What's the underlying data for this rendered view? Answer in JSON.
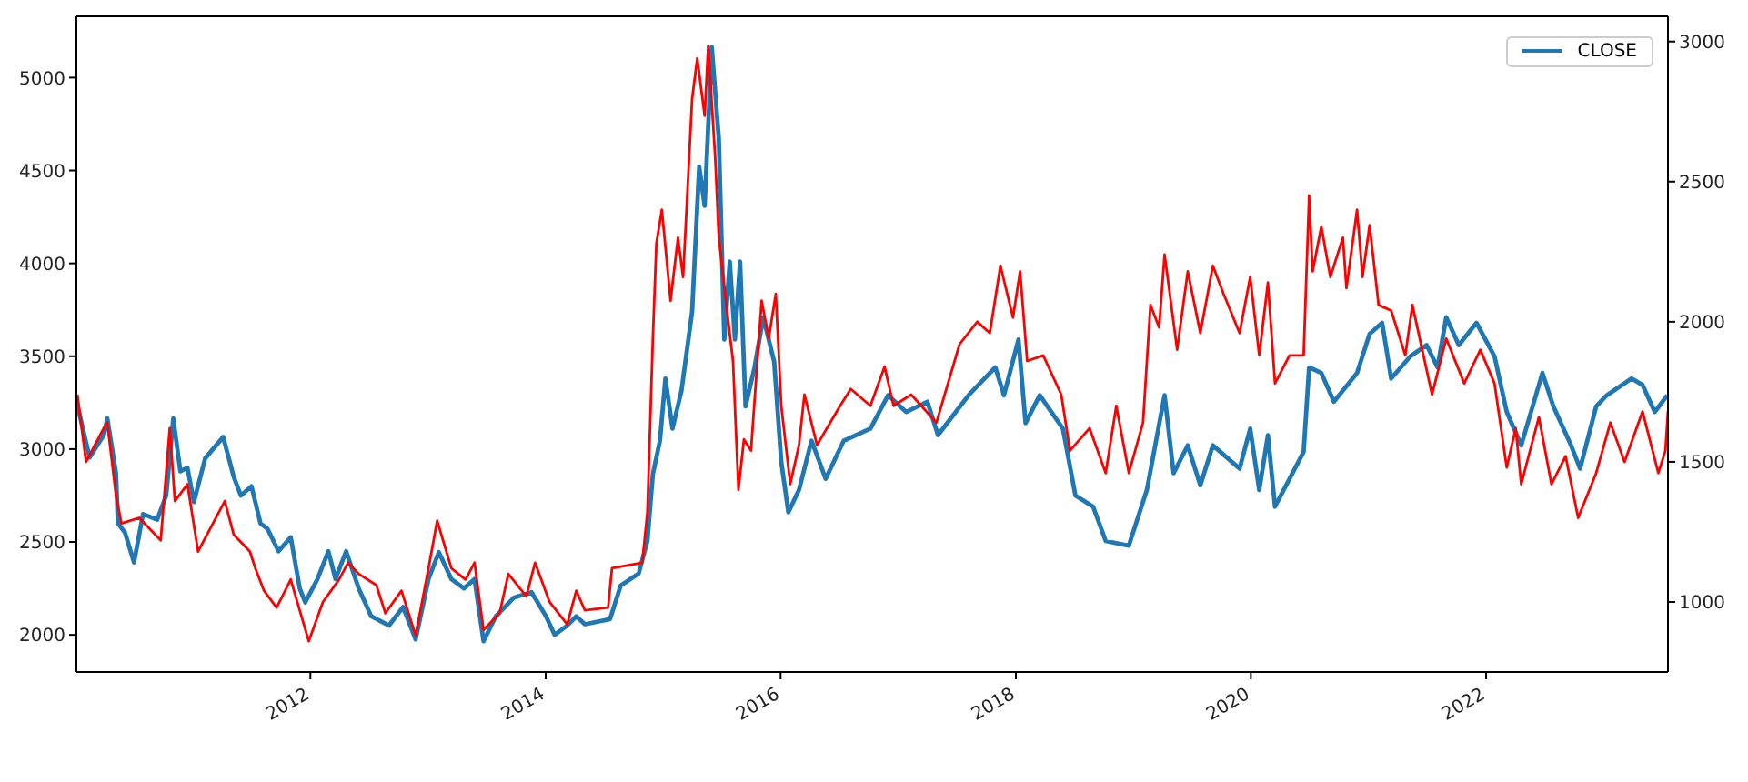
{
  "chart_data": {
    "type": "line",
    "legend": "top right",
    "xlim": [
      "2010-01-04",
      "2023-07-20"
    ],
    "xticks": [
      {
        "value": "2012-01-01",
        "label": "2012"
      },
      {
        "value": "2014-01-01",
        "label": "2014"
      },
      {
        "value": "2016-01-01",
        "label": "2016"
      },
      {
        "value": "2018-01-01",
        "label": "2018"
      },
      {
        "value": "2020-01-01",
        "label": "2020"
      },
      {
        "value": "2022-01-01",
        "label": "2022"
      }
    ],
    "ylim": [
      1800,
      5330
    ],
    "yticks": [
      2000,
      2500,
      3000,
      3500,
      4000,
      4500,
      5000
    ],
    "y2lim": [
      750,
      3090
    ],
    "y2ticks": [
      1000,
      1500,
      2000,
      2500,
      3000
    ],
    "series": [
      {
        "name": "CLOSE",
        "color": "#1f77b4",
        "x": [
          "2010-01-04",
          "2010-02-14",
          "2010-03-30",
          "2010-04-10",
          "2010-05-07",
          "2010-05-13",
          "2010-06-04",
          "2010-07-02",
          "2010-07-30",
          "2010-09-12",
          "2010-10-10",
          "2010-11-01",
          "2010-11-23",
          "2010-12-15",
          "2011-01-04",
          "2011-02-08",
          "2011-04-05",
          "2011-05-08",
          "2011-05-30",
          "2011-07-02",
          "2011-07-30",
          "2011-08-21",
          "2011-09-24",
          "2011-11-01",
          "2011-11-29",
          "2011-12-16",
          "2012-01-23",
          "2012-02-26",
          "2012-03-19",
          "2012-04-21",
          "2012-05-30",
          "2012-07-08",
          "2012-09-01",
          "2012-10-15",
          "2012-11-23",
          "2013-01-02",
          "2013-02-03",
          "2013-03-14",
          "2013-04-22",
          "2013-05-25",
          "2013-06-22",
          "2013-07-30",
          "2013-09-24",
          "2013-11-18",
          "2014-01-02",
          "2014-01-29",
          "2014-03-09",
          "2014-04-06",
          "2014-05-03",
          "2014-07-20",
          "2014-08-22",
          "2014-10-17",
          "2014-11-13",
          "2014-11-30",
          "2014-12-22",
          "2015-01-08",
          "2015-01-30",
          "2015-02-27",
          "2015-04-01",
          "2015-04-23",
          "2015-05-10",
          "2015-06-01",
          "2015-06-23",
          "2015-07-10",
          "2015-07-27",
          "2015-08-12",
          "2015-08-28",
          "2015-09-14",
          "2015-10-12",
          "2015-11-08",
          "2015-12-12",
          "2016-01-03",
          "2016-01-25",
          "2016-02-27",
          "2016-04-06",
          "2016-05-20",
          "2016-07-15",
          "2016-10-06",
          "2016-11-30",
          "2017-01-25",
          "2017-04-01",
          "2017-05-04",
          "2017-08-07",
          "2017-10-29",
          "2017-11-25",
          "2018-01-09",
          "2018-01-31",
          "2018-03-16",
          "2018-05-27",
          "2018-07-05",
          "2018-08-29",
          "2018-10-07",
          "2018-12-18",
          "2019-02-12",
          "2019-04-08",
          "2019-05-06",
          "2019-06-19",
          "2019-07-28",
          "2019-09-05",
          "2019-11-27",
          "2019-12-30",
          "2020-01-27",
          "2020-02-23",
          "2020-03-16",
          "2020-06-13",
          "2020-06-30",
          "2020-08-07",
          "2020-09-15",
          "2020-11-26",
          "2021-01-04",
          "2021-02-12",
          "2021-03-12",
          "2021-05-11",
          "2021-06-30",
          "2021-08-03",
          "2021-08-30",
          "2021-10-08",
          "2021-12-02",
          "2022-01-27",
          "2022-03-06",
          "2022-04-20",
          "2022-06-25",
          "2022-07-29",
          "2022-09-22",
          "2022-10-20",
          "2022-12-09",
          "2023-01-11",
          "2023-03-29",
          "2023-05-02",
          "2023-06-09",
          "2023-07-18"
        ],
        "values": [
          3260,
          2955,
          3075,
          3165,
          2870,
          2600,
          2550,
          2390,
          2650,
          2620,
          2750,
          3165,
          2880,
          2900,
          2715,
          2950,
          3065,
          2850,
          2750,
          2800,
          2600,
          2570,
          2450,
          2525,
          2250,
          2175,
          2300,
          2450,
          2300,
          2450,
          2250,
          2100,
          2050,
          2150,
          1976,
          2300,
          2445,
          2300,
          2250,
          2300,
          1966,
          2100,
          2200,
          2230,
          2100,
          2000,
          2050,
          2100,
          2057,
          2085,
          2265,
          2330,
          2505,
          2865,
          3045,
          3380,
          3110,
          3315,
          3740,
          4520,
          4310,
          5165,
          4670,
          3590,
          4010,
          3590,
          4010,
          3230,
          3440,
          3710,
          3470,
          2930,
          2660,
          2780,
          3045,
          2840,
          3045,
          3110,
          3290,
          3200,
          3255,
          3075,
          3290,
          3440,
          3290,
          3590,
          3140,
          3290,
          3110,
          2750,
          2690,
          2505,
          2480,
          2780,
          3290,
          2870,
          3020,
          2805,
          3020,
          2895,
          3110,
          2780,
          3075,
          2690,
          2985,
          3440,
          3410,
          3255,
          3410,
          3620,
          3680,
          3380,
          3500,
          3560,
          3440,
          3710,
          3560,
          3680,
          3500,
          3200,
          3020,
          3410,
          3230,
          3020,
          2895,
          3230,
          3290,
          3380,
          3345,
          3200,
          3290
        ]
      },
      {
        "axis": "y2",
        "color": "#ff0000",
        "x": [
          "2010-01-07",
          "2010-02-03",
          "2010-03-30",
          "2010-04-10",
          "2010-05-07",
          "2010-05-24",
          "2010-07-18",
          "2010-09-23",
          "2010-10-21",
          "2010-11-06",
          "2010-12-15",
          "2011-01-17",
          "2011-04-10",
          "2011-05-08",
          "2011-06-27",
          "2011-07-14",
          "2011-08-10",
          "2011-09-18",
          "2011-11-01",
          "2011-12-27",
          "2012-02-09",
          "2012-03-30",
          "2012-04-27",
          "2012-05-30",
          "2012-07-24",
          "2012-08-21",
          "2012-10-10",
          "2012-11-23",
          "2013-01-02",
          "2013-01-29",
          "2013-03-14",
          "2013-04-27",
          "2013-05-25",
          "2013-06-22",
          "2013-08-11",
          "2013-09-07",
          "2013-11-02",
          "2013-11-29",
          "2014-01-13",
          "2014-03-09",
          "2014-04-06",
          "2014-05-03",
          "2014-07-14",
          "2014-07-26",
          "2014-10-28",
          "2014-11-13",
          "2014-11-30",
          "2014-12-11",
          "2014-12-28",
          "2015-01-24",
          "2015-02-16",
          "2015-03-04",
          "2015-04-01",
          "2015-04-17",
          "2015-05-10",
          "2015-05-21",
          "2015-06-12",
          "2015-06-23",
          "2015-07-21",
          "2015-08-06",
          "2015-08-23",
          "2015-09-09",
          "2015-10-01",
          "2015-11-03",
          "2015-11-25",
          "2015-12-17",
          "2016-01-03",
          "2016-01-31",
          "2016-02-27",
          "2016-03-15",
          "2016-04-23",
          "2016-07-04",
          "2016-08-06",
          "2016-10-06",
          "2016-11-19",
          "2016-12-17",
          "2017-02-10",
          "2017-04-29",
          "2017-07-10",
          "2017-09-03",
          "2017-10-12",
          "2017-11-14",
          "2017-12-23",
          "2018-01-14",
          "2018-02-05",
          "2018-03-27",
          "2018-05-22",
          "2018-06-18",
          "2018-08-18",
          "2018-10-07",
          "2018-11-09",
          "2018-12-18",
          "2019-01-31",
          "2019-02-23",
          "2019-03-22",
          "2019-04-08",
          "2019-05-17",
          "2019-06-19",
          "2019-07-28",
          "2019-09-05",
          "2019-10-08",
          "2019-11-27",
          "2019-12-30",
          "2020-01-27",
          "2020-02-23",
          "2020-03-16",
          "2020-04-30",
          "2020-06-13",
          "2020-06-30",
          "2020-07-11",
          "2020-08-07",
          "2020-09-04",
          "2020-10-13",
          "2020-10-24",
          "2020-11-26",
          "2020-12-13",
          "2021-01-04",
          "2021-02-01",
          "2021-03-12",
          "2021-04-25",
          "2021-05-17",
          "2021-07-17",
          "2021-08-30",
          "2021-10-25",
          "2021-12-14",
          "2022-01-27",
          "2022-03-06",
          "2022-04-03",
          "2022-04-20",
          "2022-06-14",
          "2022-07-23",
          "2022-09-05",
          "2022-10-14",
          "2022-12-09",
          "2023-01-22",
          "2023-03-07",
          "2023-05-02",
          "2023-06-20",
          "2023-07-12",
          "2023-07-20"
        ],
        "values": [
          1740,
          1500,
          1620,
          1640,
          1380,
          1280,
          1300,
          1220,
          1620,
          1360,
          1420,
          1180,
          1360,
          1240,
          1180,
          1120,
          1040,
          980,
          1080,
          860,
          1000,
          1080,
          1140,
          1100,
          1060,
          960,
          1040,
          880,
          1120,
          1290,
          1120,
          1080,
          1140,
          900,
          960,
          1100,
          1020,
          1140,
          1000,
          920,
          1040,
          970,
          980,
          1120,
          1140,
          1320,
          1940,
          2280,
          2400,
          2075,
          2300,
          2160,
          2795,
          2940,
          2735,
          2985,
          2580,
          2300,
          2015,
          1860,
          1400,
          1580,
          1540,
          2075,
          1940,
          2100,
          1700,
          1420,
          1560,
          1740,
          1560,
          1700,
          1760,
          1700,
          1840,
          1700,
          1740,
          1640,
          1920,
          2000,
          1960,
          2200,
          2015,
          2180,
          1860,
          1880,
          1740,
          1540,
          1620,
          1460,
          1700,
          1460,
          1640,
          2060,
          1980,
          2240,
          1900,
          2180,
          1960,
          2200,
          2100,
          1960,
          2160,
          1880,
          2140,
          1780,
          1880,
          1880,
          2450,
          2180,
          2340,
          2160,
          2300,
          2120,
          2400,
          2160,
          2345,
          2060,
          2040,
          1880,
          2060,
          1740,
          1940,
          1780,
          1900,
          1780,
          1480,
          1620,
          1420,
          1660,
          1420,
          1520,
          1300,
          1460,
          1640,
          1500,
          1680,
          1460,
          1540,
          1680
        ]
      }
    ]
  }
}
